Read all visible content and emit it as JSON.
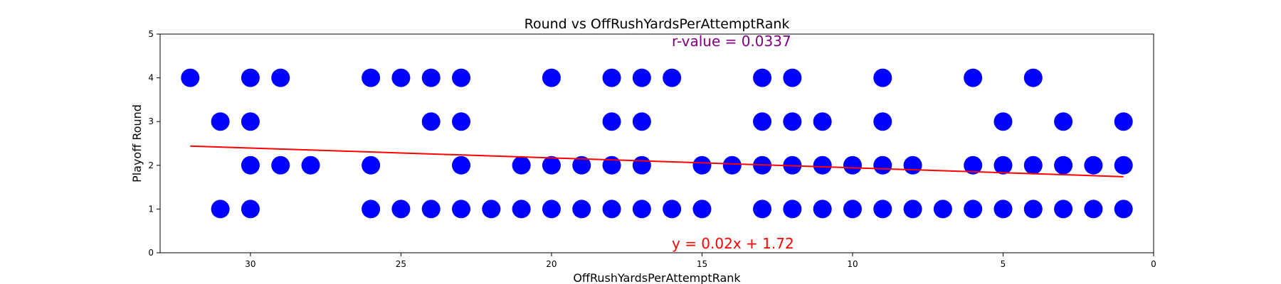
{
  "chart_data": {
    "type": "scatter",
    "title": "Round vs OffRushYardsPerAttemptRank",
    "xlabel": "OffRushYardsPerAttemptRank",
    "ylabel": "Playoff Round",
    "xlim": [
      33,
      0
    ],
    "ylim": [
      0,
      5
    ],
    "x_ticks": [
      30,
      25,
      20,
      15,
      10,
      5,
      0
    ],
    "y_ticks": [
      0,
      1,
      2,
      3,
      4,
      5
    ],
    "grid": false,
    "legend": "none",
    "series": [
      {
        "color": "#0000ff",
        "points": [
          [
            32,
            4
          ],
          [
            30,
            4
          ],
          [
            29,
            4
          ],
          [
            26,
            4
          ],
          [
            25,
            4
          ],
          [
            24,
            4
          ],
          [
            23,
            4
          ],
          [
            20,
            4
          ],
          [
            18,
            4
          ],
          [
            17,
            4
          ],
          [
            16,
            4
          ],
          [
            13,
            4
          ],
          [
            12,
            4
          ],
          [
            9,
            4
          ],
          [
            6,
            4
          ],
          [
            4,
            4
          ],
          [
            31,
            3
          ],
          [
            30,
            3
          ],
          [
            24,
            3
          ],
          [
            23,
            3
          ],
          [
            18,
            3
          ],
          [
            17,
            3
          ],
          [
            13,
            3
          ],
          [
            12,
            3
          ],
          [
            11,
            3
          ],
          [
            9,
            3
          ],
          [
            5,
            3
          ],
          [
            3,
            3
          ],
          [
            1,
            3
          ],
          [
            30,
            2
          ],
          [
            29,
            2
          ],
          [
            28,
            2
          ],
          [
            26,
            2
          ],
          [
            23,
            2
          ],
          [
            21,
            2
          ],
          [
            20,
            2
          ],
          [
            19,
            2
          ],
          [
            18,
            2
          ],
          [
            17,
            2
          ],
          [
            15,
            2
          ],
          [
            14,
            2
          ],
          [
            13,
            2
          ],
          [
            12,
            2
          ],
          [
            11,
            2
          ],
          [
            10,
            2
          ],
          [
            9,
            2
          ],
          [
            8,
            2
          ],
          [
            6,
            2
          ],
          [
            5,
            2
          ],
          [
            4,
            2
          ],
          [
            3,
            2
          ],
          [
            2,
            2
          ],
          [
            1,
            2
          ],
          [
            31,
            1
          ],
          [
            30,
            1
          ],
          [
            26,
            1
          ],
          [
            25,
            1
          ],
          [
            24,
            1
          ],
          [
            23,
            1
          ],
          [
            22,
            1
          ],
          [
            21,
            1
          ],
          [
            20,
            1
          ],
          [
            19,
            1
          ],
          [
            18,
            1
          ],
          [
            17,
            1
          ],
          [
            16,
            1
          ],
          [
            15,
            1
          ],
          [
            13,
            1
          ],
          [
            12,
            1
          ],
          [
            11,
            1
          ],
          [
            10,
            1
          ],
          [
            9,
            1
          ],
          [
            8,
            1
          ],
          [
            7,
            1
          ],
          [
            6,
            1
          ],
          [
            5,
            1
          ],
          [
            4,
            1
          ],
          [
            3,
            1
          ],
          [
            2,
            1
          ],
          [
            1,
            1
          ]
        ]
      }
    ],
    "regression": {
      "color": "#ff0000",
      "x_range": [
        32,
        1
      ],
      "y_range": [
        2.44,
        1.74
      ]
    },
    "annotations": {
      "r_value": {
        "text": "r-value = 0.0337",
        "color": "#800080"
      },
      "equation": {
        "text": "y = 0.02x + 1.72",
        "color": "#ff0000"
      }
    }
  }
}
